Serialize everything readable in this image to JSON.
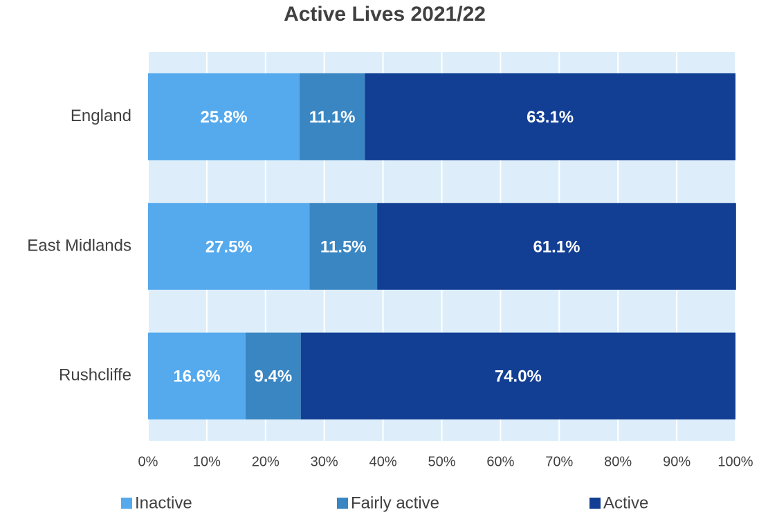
{
  "chart_data": {
    "type": "stacked-barh",
    "title": "Active Lives 2021/22",
    "categories": [
      "England",
      "East Midlands",
      "Rushcliffe"
    ],
    "series": [
      {
        "name": "Inactive",
        "color": "#55aaee",
        "values": [
          25.8,
          27.5,
          16.6
        ],
        "value_labels": [
          "25.8%",
          "27.5%",
          "16.6%"
        ]
      },
      {
        "name": "Fairly active",
        "color": "#3a86c2",
        "values": [
          11.1,
          11.5,
          9.4
        ],
        "value_labels": [
          "11.1%",
          "11.5%",
          "9.4%"
        ]
      },
      {
        "name": "Active",
        "color": "#123f94",
        "values": [
          63.1,
          61.1,
          74.0
        ],
        "value_labels": [
          "63.1%",
          "61.1%",
          "74.0%"
        ]
      }
    ],
    "xlim": [
      0,
      100
    ],
    "xticks": [
      {
        "value": 0,
        "label": "0%"
      },
      {
        "value": 10,
        "label": "10%"
      },
      {
        "value": 20,
        "label": "20%"
      },
      {
        "value": 30,
        "label": "30%"
      },
      {
        "value": 40,
        "label": "40%"
      },
      {
        "value": 50,
        "label": "50%"
      },
      {
        "value": 60,
        "label": "60%"
      },
      {
        "value": 70,
        "label": "70%"
      },
      {
        "value": 80,
        "label": "80%"
      },
      {
        "value": 90,
        "label": "90%"
      },
      {
        "value": 100,
        "label": "100%"
      }
    ],
    "grid": true,
    "legend": "bottom"
  }
}
